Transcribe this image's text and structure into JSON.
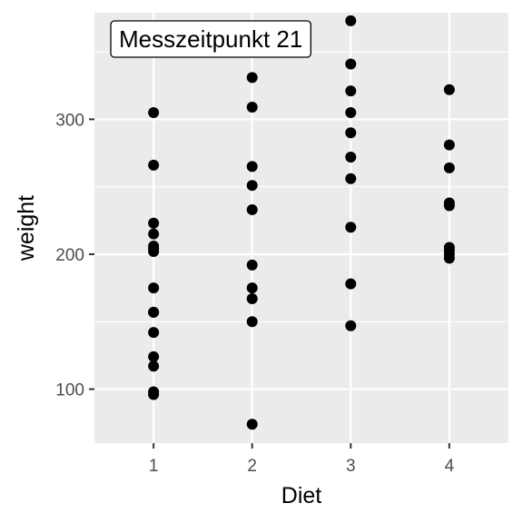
{
  "chart_data": {
    "type": "scatter",
    "xlabel": "Diet",
    "ylabel": "weight",
    "x_ticks": [
      "1",
      "2",
      "3",
      "4"
    ],
    "y_ticks": [
      100,
      200,
      300
    ],
    "xlim": [
      0.4,
      4.6
    ],
    "ylim": [
      60,
      379
    ],
    "grid": true,
    "annotation": "Messzeitpunkt 21",
    "colors": {
      "panel_bg": "#ebebeb",
      "grid_major": "#ffffff",
      "point": "#000000",
      "annotation_bg": "#ffffff",
      "annotation_border": "#000000"
    },
    "points": [
      {
        "x": 1,
        "y": 305
      },
      {
        "x": 1,
        "y": 266
      },
      {
        "x": 1,
        "y": 223
      },
      {
        "x": 1,
        "y": 215
      },
      {
        "x": 1,
        "y": 206
      },
      {
        "x": 1,
        "y": 204
      },
      {
        "x": 1,
        "y": 202
      },
      {
        "x": 1,
        "y": 175
      },
      {
        "x": 1,
        "y": 157
      },
      {
        "x": 1,
        "y": 157
      },
      {
        "x": 1,
        "y": 142
      },
      {
        "x": 1,
        "y": 124
      },
      {
        "x": 1,
        "y": 117
      },
      {
        "x": 1,
        "y": 98
      },
      {
        "x": 1,
        "y": 96
      },
      {
        "x": 2,
        "y": 331
      },
      {
        "x": 2,
        "y": 309
      },
      {
        "x": 2,
        "y": 265
      },
      {
        "x": 2,
        "y": 251
      },
      {
        "x": 2,
        "y": 233
      },
      {
        "x": 2,
        "y": 192
      },
      {
        "x": 2,
        "y": 175
      },
      {
        "x": 2,
        "y": 167
      },
      {
        "x": 2,
        "y": 150
      },
      {
        "x": 2,
        "y": 74
      },
      {
        "x": 3,
        "y": 373
      },
      {
        "x": 3,
        "y": 341
      },
      {
        "x": 3,
        "y": 321
      },
      {
        "x": 3,
        "y": 305
      },
      {
        "x": 3,
        "y": 290
      },
      {
        "x": 3,
        "y": 272
      },
      {
        "x": 3,
        "y": 256
      },
      {
        "x": 3,
        "y": 220
      },
      {
        "x": 3,
        "y": 178
      },
      {
        "x": 3,
        "y": 147
      },
      {
        "x": 4,
        "y": 322
      },
      {
        "x": 4,
        "y": 281
      },
      {
        "x": 4,
        "y": 264
      },
      {
        "x": 4,
        "y": 238
      },
      {
        "x": 4,
        "y": 236
      },
      {
        "x": 4,
        "y": 205
      },
      {
        "x": 4,
        "y": 203
      },
      {
        "x": 4,
        "y": 200
      },
      {
        "x": 4,
        "y": 197
      }
    ]
  }
}
